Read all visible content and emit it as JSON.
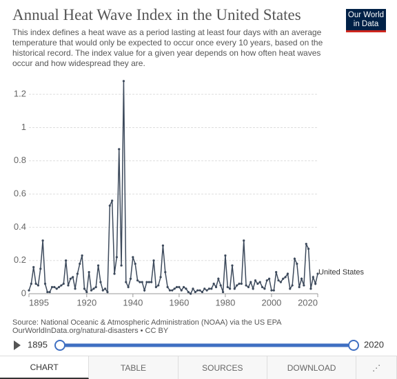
{
  "chart_data": {
    "type": "line",
    "title": "Annual Heat Wave Index in the United States",
    "subtitle": "This index defines a heat wave as a period lasting at least four days with an average temperature that would only be expected to occur once every 10 years, based on the historical record. The index value for a given year depends on how often heat waves occur and how widespread they are.",
    "x": [
      1895,
      1896,
      1897,
      1898,
      1899,
      1900,
      1901,
      1902,
      1903,
      1904,
      1905,
      1906,
      1907,
      1908,
      1909,
      1910,
      1911,
      1912,
      1913,
      1914,
      1915,
      1916,
      1917,
      1918,
      1919,
      1920,
      1921,
      1922,
      1923,
      1924,
      1925,
      1926,
      1927,
      1928,
      1929,
      1930,
      1931,
      1932,
      1933,
      1934,
      1935,
      1936,
      1937,
      1938,
      1939,
      1940,
      1941,
      1942,
      1943,
      1944,
      1945,
      1946,
      1947,
      1948,
      1949,
      1950,
      1951,
      1952,
      1953,
      1954,
      1955,
      1956,
      1957,
      1958,
      1959,
      1960,
      1961,
      1962,
      1963,
      1964,
      1965,
      1966,
      1967,
      1968,
      1969,
      1970,
      1971,
      1972,
      1973,
      1974,
      1975,
      1976,
      1977,
      1978,
      1979,
      1980,
      1981,
      1982,
      1983,
      1984,
      1985,
      1986,
      1987,
      1988,
      1989,
      1990,
      1991,
      1992,
      1993,
      1994,
      1995,
      1996,
      1997,
      1998,
      1999,
      2000,
      2001,
      2002,
      2003,
      2004,
      2005,
      2006,
      2007,
      2008,
      2009,
      2010,
      2011,
      2012,
      2013,
      2014,
      2015,
      2016,
      2017,
      2018,
      2019,
      2020
    ],
    "series": [
      {
        "name": "United States",
        "color": "#3d4a5c",
        "values": [
          0.02,
          0.06,
          0.16,
          0.06,
          0.05,
          0.15,
          0.32,
          0.06,
          0.01,
          0.01,
          0.04,
          0.04,
          0.03,
          0.04,
          0.05,
          0.06,
          0.2,
          0.05,
          0.09,
          0.1,
          0.03,
          0.12,
          0.18,
          0.23,
          0.03,
          0.01,
          0.13,
          0.02,
          0.03,
          0.04,
          0.17,
          0.07,
          0.02,
          0.03,
          0.01,
          0.53,
          0.56,
          0.12,
          0.22,
          0.87,
          0.17,
          1.28,
          0.07,
          0.04,
          0.09,
          0.22,
          0.18,
          0.08,
          0.07,
          0.07,
          0.02,
          0.07,
          0.07,
          0.07,
          0.2,
          0.04,
          0.05,
          0.1,
          0.29,
          0.13,
          0.04,
          0.02,
          0.02,
          0.03,
          0.04,
          0.04,
          0.02,
          0.04,
          0.03,
          0.01,
          0,
          0.03,
          0.01,
          0.02,
          0.02,
          0.01,
          0.03,
          0.02,
          0.03,
          0.03,
          0.06,
          0.04,
          0.09,
          0.05,
          0.01,
          0.23,
          0.04,
          0.03,
          0.17,
          0.03,
          0.05,
          0.06,
          0.06,
          0.32,
          0.05,
          0.04,
          0.07,
          0.03,
          0.08,
          0.06,
          0.07,
          0.04,
          0.03,
          0.08,
          0.09,
          0.02,
          0.02,
          0.13,
          0.08,
          0.07,
          0.09,
          0.1,
          0.12,
          0.03,
          0.05,
          0.21,
          0.18,
          0.04,
          0.09,
          0.05,
          0.3,
          0.27,
          0.03,
          0.1,
          0.06,
          0.12
        ]
      }
    ],
    "xlim": [
      1895,
      2020
    ],
    "xticks": [
      1895,
      1920,
      1940,
      1960,
      1980,
      2000,
      2020
    ],
    "ylim": [
      0,
      1.3
    ],
    "yticks": [
      0,
      0.2,
      0.4,
      0.6,
      0.8,
      1,
      1.2
    ],
    "grid": true,
    "source": "Source: National Oceanic & Atmospheric Administration (NOAA) via the US EPA",
    "source_line2": "OurWorldInData.org/natural-disasters • CC BY"
  },
  "logo": [
    "Our World",
    "in Data"
  ],
  "tabs": [
    "CHART",
    "TABLE",
    "SOURCES",
    "DOWNLOAD"
  ]
}
